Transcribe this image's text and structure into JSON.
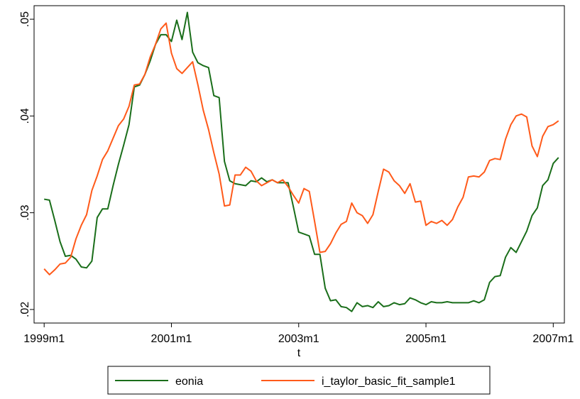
{
  "chart_data": {
    "type": "line",
    "x_label": "t",
    "x": [
      468,
      469,
      470,
      471,
      472,
      473,
      474,
      475,
      476,
      477,
      478,
      479,
      480,
      481,
      482,
      483,
      484,
      485,
      486,
      487,
      488,
      489,
      490,
      491,
      492,
      493,
      494,
      495,
      496,
      497,
      498,
      499,
      500,
      501,
      502,
      503,
      504,
      505,
      506,
      507,
      508,
      509,
      510,
      511,
      512,
      513,
      514,
      515,
      516,
      517,
      518,
      519,
      520,
      521,
      522,
      523,
      524,
      525,
      526,
      527,
      528,
      529,
      530,
      531,
      532,
      533,
      534,
      535,
      536,
      537,
      538,
      539,
      540,
      541,
      542,
      543,
      544,
      545,
      546,
      547,
      548,
      549,
      550,
      551,
      552,
      553,
      554,
      555,
      556,
      557,
      558,
      559,
      560,
      561,
      562,
      563,
      564,
      565
    ],
    "series": [
      {
        "name": "eonia",
        "color": "#1a6e1a",
        "values": [
          0.0314,
          0.0313,
          0.0292,
          0.027,
          0.0255,
          0.0256,
          0.0252,
          0.0244,
          0.0243,
          0.025,
          0.0295,
          0.0304,
          0.0304,
          0.0328,
          0.035,
          0.037,
          0.0391,
          0.043,
          0.0432,
          0.0443,
          0.0457,
          0.0474,
          0.0484,
          0.0484,
          0.0477,
          0.0499,
          0.0479,
          0.0507,
          0.0466,
          0.0455,
          0.0452,
          0.045,
          0.0421,
          0.0419,
          0.0353,
          0.0333,
          0.033,
          0.0329,
          0.0328,
          0.0333,
          0.0332,
          0.0336,
          0.0332,
          0.0334,
          0.0331,
          0.0331,
          0.0331,
          0.0306,
          0.028,
          0.0278,
          0.0276,
          0.0257,
          0.0257,
          0.0222,
          0.0209,
          0.021,
          0.0203,
          0.0202,
          0.0198,
          0.0207,
          0.0203,
          0.0204,
          0.0202,
          0.0208,
          0.0203,
          0.0204,
          0.0207,
          0.0205,
          0.0206,
          0.0212,
          0.021,
          0.0207,
          0.0205,
          0.0208,
          0.0207,
          0.0207,
          0.0208,
          0.0207,
          0.0207,
          0.0207,
          0.0207,
          0.0209,
          0.0207,
          0.021,
          0.0228,
          0.0234,
          0.0235,
          0.0254,
          0.0264,
          0.0259,
          0.027,
          0.0281,
          0.0297,
          0.0305,
          0.0328,
          0.0334,
          0.0351,
          0.0357
        ]
      },
      {
        "name": "i_taylor_basic_fit_sample1",
        "color": "#ff5a1a",
        "values": [
          0.0242,
          0.0236,
          0.0241,
          0.0247,
          0.0248,
          0.0254,
          0.0273,
          0.0287,
          0.0298,
          0.0323,
          0.0338,
          0.0355,
          0.0364,
          0.0377,
          0.039,
          0.0397,
          0.041,
          0.0432,
          0.0433,
          0.0443,
          0.0461,
          0.0474,
          0.049,
          0.0496,
          0.0465,
          0.0449,
          0.0444,
          0.045,
          0.0456,
          0.0432,
          0.0406,
          0.0386,
          0.0362,
          0.034,
          0.0307,
          0.0308,
          0.0339,
          0.0339,
          0.0347,
          0.0343,
          0.0333,
          0.0328,
          0.0331,
          0.0334,
          0.0331,
          0.0334,
          0.0327,
          0.0318,
          0.031,
          0.0325,
          0.0322,
          0.0291,
          0.0259,
          0.026,
          0.0268,
          0.0279,
          0.0288,
          0.0291,
          0.031,
          0.03,
          0.0297,
          0.0289,
          0.0298,
          0.0322,
          0.0345,
          0.0342,
          0.0333,
          0.0328,
          0.032,
          0.033,
          0.0311,
          0.0312,
          0.0287,
          0.0291,
          0.0289,
          0.0292,
          0.0287,
          0.0293,
          0.0306,
          0.0316,
          0.0337,
          0.0338,
          0.0337,
          0.0342,
          0.0354,
          0.0356,
          0.0355,
          0.0376,
          0.0391,
          0.04,
          0.0402,
          0.0399,
          0.0369,
          0.0358,
          0.0379,
          0.0389,
          0.0391,
          0.0395
        ]
      }
    ],
    "xlim": [
      466.1,
      566.1
    ],
    "xticks": [
      {
        "value": 468,
        "label": "1999m1"
      },
      {
        "value": 492,
        "label": "2001m1"
      },
      {
        "value": 516,
        "label": "2003m1"
      },
      {
        "value": 540,
        "label": "2005m1"
      },
      {
        "value": 564,
        "label": "2007m1"
      }
    ],
    "ylim": [
      0.0186,
      0.0514
    ],
    "yticks": [
      {
        "value": 0.02,
        "label": ".02"
      },
      {
        "value": 0.03,
        "label": ".03"
      },
      {
        "value": 0.04,
        "label": ".04"
      },
      {
        "value": 0.05,
        "label": ".05"
      }
    ],
    "grid": false,
    "legend": "bottom"
  }
}
